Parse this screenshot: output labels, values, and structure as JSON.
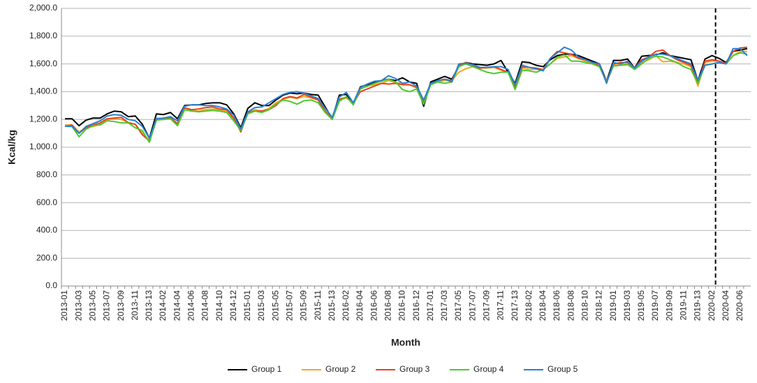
{
  "chart_data": {
    "type": "line",
    "x_label": "Month",
    "y_label": "Kcal/kg",
    "categories": [
      "2013-01",
      null,
      "2013-03",
      null,
      "2013-05",
      null,
      "2013-07",
      null,
      "2013-09",
      null,
      "2013-11",
      null,
      "2013-13",
      null,
      "2014-02",
      null,
      "2014-04",
      null,
      "2014-06",
      null,
      "2014-08",
      null,
      "2014-10",
      null,
      "2014-12",
      null,
      "2015-01",
      null,
      "2015-03",
      null,
      "2015-05",
      null,
      "2015-07",
      null,
      "2015-09",
      null,
      "2015-11",
      null,
      "2015-13",
      null,
      "2016-02",
      null,
      "2016-04",
      null,
      "2016-06",
      null,
      "2016-08",
      null,
      "2016-10",
      null,
      "2016-12",
      null,
      "2017-01",
      null,
      "2017-03",
      null,
      "2017-05",
      null,
      "2017-07",
      null,
      "2017-09",
      null,
      "2017-11",
      null,
      "2017-13",
      null,
      "2018-02",
      null,
      "2018-04",
      null,
      "2018-06",
      null,
      "2018-08",
      null,
      "2018-10",
      null,
      "2018-12",
      null,
      "2019-01",
      null,
      "2019-03",
      null,
      "2019-05",
      null,
      "2019-07",
      null,
      "2019-09",
      null,
      "2019-11",
      null,
      "2019-13",
      null,
      "2020-02",
      null,
      "2020-04",
      null,
      "2020-06",
      null
    ],
    "divider_after": "2020-02",
    "ylim": [
      0,
      2000
    ],
    "yticks": [
      {
        "value": 0,
        "label": "0.0"
      },
      {
        "value": 200,
        "label": "200.0"
      },
      {
        "value": 400,
        "label": "400.0"
      },
      {
        "value": 600,
        "label": "600.0"
      },
      {
        "value": 800,
        "label": "800.0"
      },
      {
        "value": 1000,
        "label": "1,000.0"
      },
      {
        "value": 1200,
        "label": "1,200.0"
      },
      {
        "value": 1400,
        "label": "1,400.0"
      },
      {
        "value": 1600,
        "label": "1,600.0"
      },
      {
        "value": 1800,
        "label": "1,800.0"
      },
      {
        "value": 2000,
        "label": "2,000.0"
      }
    ],
    "grid": true,
    "legend": "bottom",
    "series": [
      {
        "name": "Group 1",
        "color": "#000000",
        "values": [
          1205,
          1205,
          1155,
          1195,
          1210,
          1210,
          1240,
          1260,
          1255,
          1220,
          1225,
          1165,
          1065,
          1240,
          1235,
          1250,
          1205,
          1300,
          1305,
          1305,
          1315,
          1320,
          1320,
          1305,
          1240,
          1140,
          1280,
          1320,
          1300,
          1300,
          1340,
          1375,
          1390,
          1385,
          1390,
          1380,
          1375,
          1290,
          1205,
          1375,
          1380,
          1315,
          1435,
          1450,
          1465,
          1480,
          1490,
          1480,
          1500,
          1470,
          1460,
          1295,
          1470,
          1490,
          1510,
          1490,
          1580,
          1610,
          1600,
          1595,
          1590,
          1600,
          1625,
          1540,
          1460,
          1615,
          1610,
          1590,
          1580,
          1630,
          1660,
          1670,
          1670,
          1660,
          1640,
          1620,
          1600,
          1475,
          1625,
          1625,
          1635,
          1570,
          1655,
          1660,
          1665,
          1680,
          1660,
          1650,
          1640,
          1630,
          1480,
          1635,
          1660,
          1640,
          1610,
          1690,
          1700,
          1710
        ]
      },
      {
        "name": "Group 2",
        "color": "#f5a623",
        "values": [
          1160,
          1160,
          1110,
          1140,
          1150,
          1165,
          1195,
          1205,
          1200,
          1180,
          1165,
          1100,
          1050,
          1210,
          1205,
          1210,
          1170,
          1270,
          1265,
          1260,
          1270,
          1275,
          1270,
          1260,
          1200,
          1120,
          1250,
          1270,
          1260,
          1280,
          1320,
          1345,
          1360,
          1350,
          1365,
          1355,
          1340,
          1260,
          1205,
          1340,
          1355,
          1320,
          1420,
          1440,
          1450,
          1460,
          1480,
          1465,
          1460,
          1450,
          1430,
          1320,
          1450,
          1470,
          1480,
          1480,
          1540,
          1565,
          1580,
          1570,
          1570,
          1575,
          1555,
          1540,
          1440,
          1570,
          1560,
          1560,
          1560,
          1600,
          1640,
          1650,
          1660,
          1640,
          1620,
          1600,
          1580,
          1475,
          1590,
          1595,
          1600,
          1565,
          1610,
          1630,
          1660,
          1615,
          1620,
          1610,
          1600,
          1580,
          1440,
          1610,
          1620,
          1620,
          1600,
          1660,
          1690,
          1690
        ]
      },
      {
        "name": "Group 3",
        "color": "#e8411e",
        "values": [
          1150,
          1160,
          1100,
          1140,
          1160,
          1175,
          1205,
          1210,
          1215,
          1175,
          1165,
          1090,
          1045,
          1200,
          1200,
          1210,
          1170,
          1285,
          1270,
          1275,
          1285,
          1290,
          1275,
          1270,
          1210,
          1110,
          1250,
          1260,
          1260,
          1270,
          1300,
          1350,
          1365,
          1355,
          1380,
          1360,
          1340,
          1260,
          1200,
          1345,
          1360,
          1315,
          1400,
          1420,
          1440,
          1460,
          1455,
          1460,
          1450,
          1450,
          1430,
          1325,
          1460,
          1480,
          1490,
          1480,
          1590,
          1610,
          1590,
          1570,
          1575,
          1580,
          1560,
          1540,
          1430,
          1580,
          1575,
          1570,
          1560,
          1640,
          1690,
          1680,
          1670,
          1640,
          1630,
          1610,
          1585,
          1470,
          1600,
          1610,
          1610,
          1570,
          1630,
          1650,
          1690,
          1700,
          1660,
          1630,
          1610,
          1590,
          1460,
          1620,
          1630,
          1620,
          1605,
          1690,
          1715,
          1720
        ]
      },
      {
        "name": "Group 4",
        "color": "#4cc930",
        "values": [
          1155,
          1150,
          1075,
          1130,
          1155,
          1160,
          1190,
          1185,
          1175,
          1175,
          1140,
          1120,
          1035,
          1195,
          1200,
          1205,
          1155,
          1270,
          1260,
          1255,
          1260,
          1265,
          1260,
          1250,
          1190,
          1120,
          1240,
          1260,
          1250,
          1270,
          1310,
          1340,
          1330,
          1310,
          1335,
          1340,
          1320,
          1250,
          1200,
          1330,
          1365,
          1305,
          1420,
          1440,
          1460,
          1475,
          1490,
          1470,
          1415,
          1400,
          1420,
          1310,
          1450,
          1470,
          1460,
          1470,
          1580,
          1600,
          1580,
          1560,
          1540,
          1530,
          1540,
          1540,
          1415,
          1555,
          1550,
          1540,
          1560,
          1600,
          1650,
          1665,
          1620,
          1620,
          1610,
          1600,
          1580,
          1470,
          1585,
          1590,
          1595,
          1560,
          1600,
          1640,
          1655,
          1650,
          1630,
          1610,
          1580,
          1560,
          1460,
          1590,
          1600,
          1610,
          1600,
          1660,
          1680,
          1670
        ]
      },
      {
        "name": "Group 5",
        "color": "#2a7fd4",
        "values": [
          1150,
          1150,
          1100,
          1150,
          1170,
          1190,
          1225,
          1235,
          1230,
          1200,
          1190,
          1150,
          1065,
          1205,
          1210,
          1220,
          1190,
          1295,
          1305,
          1305,
          1300,
          1300,
          1290,
          1275,
          1230,
          1130,
          1255,
          1285,
          1290,
          1320,
          1350,
          1380,
          1395,
          1400,
          1390,
          1370,
          1350,
          1280,
          1215,
          1360,
          1395,
          1320,
          1430,
          1455,
          1475,
          1480,
          1515,
          1495,
          1460,
          1470,
          1440,
          1340,
          1460,
          1480,
          1490,
          1470,
          1600,
          1605,
          1595,
          1575,
          1575,
          1580,
          1580,
          1560,
          1450,
          1590,
          1575,
          1565,
          1550,
          1640,
          1680,
          1720,
          1700,
          1650,
          1630,
          1610,
          1600,
          1460,
          1610,
          1600,
          1620,
          1570,
          1620,
          1650,
          1670,
          1670,
          1660,
          1640,
          1620,
          1600,
          1485,
          1590,
          1600,
          1610,
          1600,
          1710,
          1710,
          1660
        ]
      }
    ]
  }
}
